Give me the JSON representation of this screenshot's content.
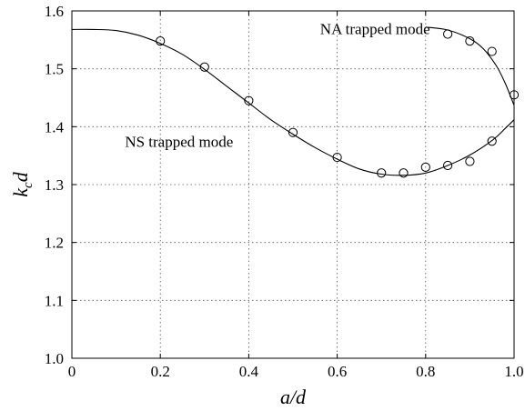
{
  "chart_data": {
    "type": "line",
    "xlabel": "a/d",
    "ylabel": "k_c d",
    "xlim": [
      0,
      1.0
    ],
    "ylim": [
      1.0,
      1.6
    ],
    "grid": true,
    "x_ticks": [
      "0",
      "0.2",
      "0.4",
      "0.6",
      "0.8",
      "1.0"
    ],
    "y_ticks": [
      "1.0",
      "1.1",
      "1.2",
      "1.3",
      "1.4",
      "1.5",
      "1.6"
    ],
    "annotations": [
      {
        "text": "NA trapped mode",
        "x": 0.81,
        "y": 1.56
      },
      {
        "text": "NS trapped mode",
        "x": 0.12,
        "y": 1.365
      }
    ],
    "series": [
      {
        "style": "solid-line",
        "x": [
          0.0,
          0.05,
          0.1,
          0.15,
          0.2,
          0.25,
          0.3,
          0.35,
          0.4,
          0.45,
          0.5,
          0.55,
          0.6,
          0.65,
          0.7,
          0.75,
          0.8,
          0.85,
          0.9,
          0.95,
          0.98,
          1.0
        ],
        "y": [
          1.568,
          1.568,
          1.566,
          1.558,
          1.544,
          1.525,
          1.499,
          1.47,
          1.441,
          1.412,
          1.387,
          1.364,
          1.344,
          1.327,
          1.318,
          1.316,
          1.32,
          1.333,
          1.351,
          1.376,
          1.397,
          1.412
        ]
      },
      {
        "style": "solid-line",
        "x": [
          0.8,
          0.85,
          0.9,
          0.93,
          0.96,
          0.98,
          1.0
        ],
        "y": [
          1.572,
          1.567,
          1.552,
          1.535,
          1.505,
          1.475,
          1.437
        ]
      },
      {
        "style": "circles",
        "x": [
          0.2,
          0.3,
          0.4,
          0.5,
          0.6,
          0.7,
          0.75,
          0.8,
          0.85,
          0.9,
          0.95
        ],
        "y": [
          1.548,
          1.503,
          1.445,
          1.39,
          1.347,
          1.32,
          1.32,
          1.33,
          1.333,
          1.34,
          1.375
        ]
      },
      {
        "style": "circles",
        "x": [
          0.85,
          0.9,
          0.95,
          1.0
        ],
        "y": [
          1.56,
          1.548,
          1.53,
          1.455
        ]
      }
    ]
  }
}
